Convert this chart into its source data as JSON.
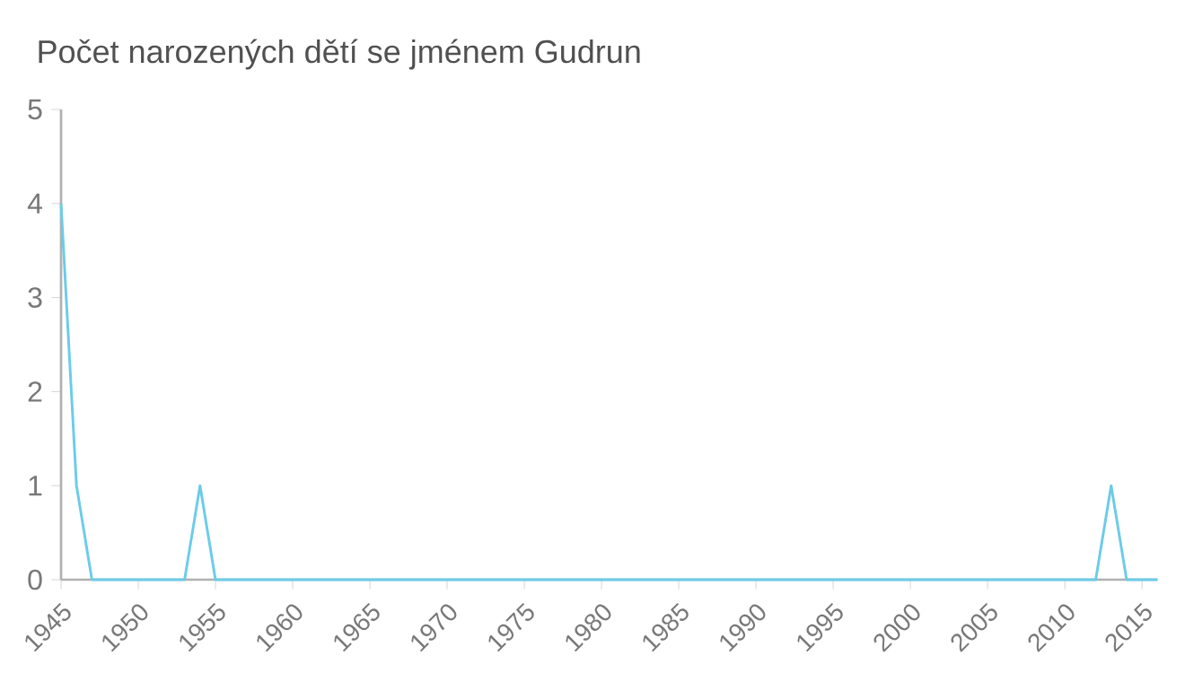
{
  "chart_data": {
    "type": "line",
    "title": "Počet narozených dětí se jménem Gudrun",
    "x": [
      1945,
      1946,
      1947,
      1948,
      1949,
      1950,
      1951,
      1952,
      1953,
      1954,
      1955,
      1956,
      1957,
      1958,
      1959,
      1960,
      1961,
      1962,
      1963,
      1964,
      1965,
      1966,
      1967,
      1968,
      1969,
      1970,
      1971,
      1972,
      1973,
      1974,
      1975,
      1976,
      1977,
      1978,
      1979,
      1980,
      1981,
      1982,
      1983,
      1984,
      1985,
      1986,
      1987,
      1988,
      1989,
      1990,
      1991,
      1992,
      1993,
      1994,
      1995,
      1996,
      1997,
      1998,
      1999,
      2000,
      2001,
      2002,
      2003,
      2004,
      2005,
      2006,
      2007,
      2008,
      2009,
      2010,
      2011,
      2012,
      2013,
      2014,
      2015,
      2016
    ],
    "values": [
      4,
      1,
      0,
      0,
      0,
      0,
      0,
      0,
      0,
      1,
      0,
      0,
      0,
      0,
      0,
      0,
      0,
      0,
      0,
      0,
      0,
      0,
      0,
      0,
      0,
      0,
      0,
      0,
      0,
      0,
      0,
      0,
      0,
      0,
      0,
      0,
      0,
      0,
      0,
      0,
      0,
      0,
      0,
      0,
      0,
      0,
      0,
      0,
      0,
      0,
      0,
      0,
      0,
      0,
      0,
      0,
      0,
      0,
      0,
      0,
      0,
      0,
      0,
      0,
      0,
      0,
      0,
      0,
      1,
      0,
      0,
      0
    ],
    "color": "#6ccbe9",
    "xlim": [
      1945,
      2016
    ],
    "xticks": [
      1945,
      1950,
      1955,
      1960,
      1965,
      1970,
      1975,
      1980,
      1985,
      1990,
      1995,
      2000,
      2005,
      2010,
      2015
    ],
    "ylim": [
      0,
      5
    ],
    "yticks": [
      0,
      1,
      2,
      3,
      4,
      5
    ],
    "grid": false,
    "marker": "none",
    "line_style": "solid"
  }
}
